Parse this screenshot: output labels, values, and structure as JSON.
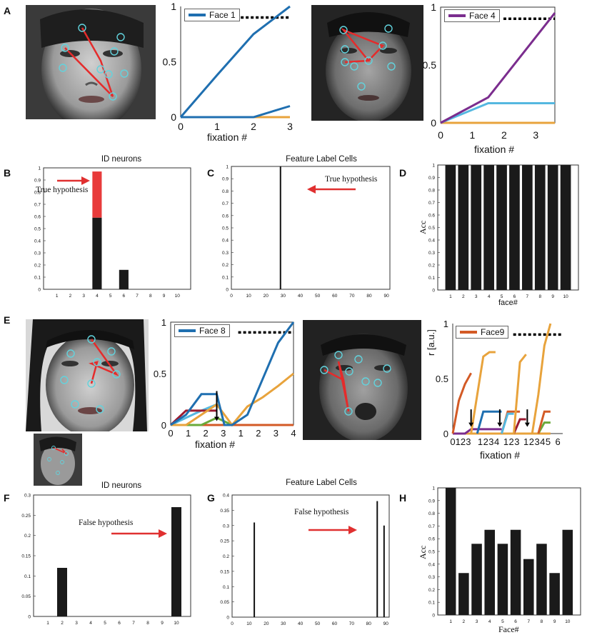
{
  "panel_labels": {
    "a": "A",
    "b": "B",
    "c": "C",
    "d": "D",
    "e": "E",
    "f": "F",
    "g": "G",
    "h": "H"
  },
  "titles": {
    "b": "ID neurons",
    "c": "Feature Label Cells",
    "f": "ID neurons",
    "g": "Feature Label Cells"
  },
  "annotations": {
    "b": "True hypothesis",
    "c": "True hypothesis",
    "f": "False hypothesis",
    "g": "False hypothesis"
  },
  "colors": {
    "blue": "#1f6fb0",
    "orange": "#e8a33c",
    "purple": "#7b2d8e",
    "cyan": "#55b8e0",
    "red": "#e03030",
    "green": "#6aaa3a",
    "darkred": "#9b1b30",
    "orangered": "#d35a25",
    "dashed": "#000000",
    "bar": "#1a1a1a",
    "barred": "#e83b3b",
    "circle": "#62d3dd"
  },
  "chart_data": [
    {
      "id": "a1",
      "type": "line",
      "legend": "Face 1",
      "xlabel": "fixation #",
      "ylabel": "",
      "xlim": [
        0,
        3
      ],
      "ylim": [
        0,
        1
      ],
      "xticks": [
        "0",
        "1",
        "2",
        "3"
      ],
      "yticks": [
        "0",
        "0.5",
        "1"
      ],
      "threshold": 0.9,
      "series": [
        {
          "name": "Face 1",
          "color": "#1f6fb0",
          "x": [
            0,
            1,
            2,
            3
          ],
          "y": [
            0,
            0.38,
            0.75,
            1.0
          ]
        },
        {
          "name": "other",
          "color": "#1f6fb0",
          "x": [
            0,
            2,
            3
          ],
          "y": [
            0,
            0,
            0.1
          ]
        },
        {
          "name": "other2",
          "color": "#e8a33c",
          "x": [
            0,
            3
          ],
          "y": [
            0,
            0
          ]
        }
      ]
    },
    {
      "id": "a2",
      "type": "line",
      "legend": "Face 4",
      "xlabel": "fixation #",
      "ylabel": "",
      "xlim": [
        0,
        3.6
      ],
      "ylim": [
        0,
        1
      ],
      "xticks": [
        "0",
        "1",
        "2",
        "3"
      ],
      "yticks": [
        "0",
        "0.5",
        "1"
      ],
      "threshold": 0.9,
      "series": [
        {
          "name": "Face 4",
          "color": "#7b2d8e",
          "x": [
            0,
            1.5,
            3.6
          ],
          "y": [
            0,
            0.22,
            0.95
          ]
        },
        {
          "name": "other",
          "color": "#55b8e0",
          "x": [
            0,
            1.5,
            3.6
          ],
          "y": [
            0,
            0.17,
            0.17
          ]
        },
        {
          "name": "other2",
          "color": "#e8a33c",
          "x": [
            0,
            3.6
          ],
          "y": [
            0,
            0
          ]
        }
      ]
    },
    {
      "id": "b",
      "type": "bar",
      "title": "ID neurons",
      "categories": [
        "1",
        "2",
        "3",
        "4",
        "5",
        "6",
        "7",
        "8",
        "9",
        "10"
      ],
      "xlim": [
        0,
        11
      ],
      "ylim": [
        0,
        1
      ],
      "yticks": [
        "0",
        "0.1",
        "0.2",
        "0.3",
        "0.4",
        "0.5",
        "0.6",
        "0.7",
        "0.8",
        "0.9",
        "1"
      ],
      "series": [
        {
          "name": "base",
          "color": "#1a1a1a",
          "values": [
            0,
            0,
            0,
            0.59,
            0,
            0.16,
            0,
            0,
            0,
            0
          ]
        },
        {
          "name": "added",
          "color": "#e83b3b",
          "values": [
            0,
            0,
            0,
            0.38,
            0,
            0,
            0,
            0,
            0,
            0
          ]
        }
      ]
    },
    {
      "id": "c",
      "type": "bar",
      "title": "Feature Label Cells",
      "xticks": [
        "0",
        "10",
        "20",
        "30",
        "40",
        "50",
        "60",
        "70",
        "80",
        "90"
      ],
      "xlim": [
        0,
        92
      ],
      "ylim": [
        0,
        1
      ],
      "yticks": [
        "0",
        "0.1",
        "0.2",
        "0.3",
        "0.4",
        "0.5",
        "0.6",
        "0.7",
        "0.8",
        "0.9",
        "1"
      ],
      "spikes": [
        {
          "x": 28.5,
          "y": 1.0
        }
      ]
    },
    {
      "id": "d",
      "type": "bar",
      "ylabel": "Acc",
      "xlabel": "face#",
      "categories": [
        "1",
        "2",
        "3",
        "4",
        "5",
        "6",
        "7",
        "8",
        "9",
        "10"
      ],
      "xlim": [
        0,
        11
      ],
      "ylim": [
        0,
        1
      ],
      "yticks": [
        "0",
        "0.1",
        "0.2",
        "0.3",
        "0.4",
        "0.5",
        "0.6",
        "0.7",
        "0.8",
        "0.9",
        "1"
      ],
      "values": [
        1,
        1,
        1,
        1,
        1,
        1,
        1,
        1,
        1,
        1
      ]
    },
    {
      "id": "e1",
      "type": "line",
      "legend": "Face 8",
      "xlabel": "fixation #",
      "xlim": [
        0,
        8
      ],
      "ylim": [
        0,
        1
      ],
      "xticks": [
        "0",
        "1",
        "2",
        "3",
        "1",
        "2",
        "3",
        "4"
      ],
      "yticks": [
        "0",
        "0.5",
        "1"
      ],
      "threshold": 0.9,
      "series": [
        {
          "name": "Face 8",
          "color": "#1f6fb0",
          "x": [
            0,
            1,
            2,
            3,
            3.5,
            4,
            5,
            6,
            7,
            8
          ],
          "y": [
            0,
            0.1,
            0.3,
            0.3,
            0,
            0,
            0.1,
            0.45,
            0.8,
            1.0
          ]
        },
        {
          "name": "s2",
          "color": "#e8a33c",
          "x": [
            0,
            1,
            2,
            3,
            4,
            5,
            6,
            7,
            8
          ],
          "y": [
            0,
            0,
            0.1,
            0.2,
            0,
            0.18,
            0.27,
            0.38,
            0.5
          ]
        },
        {
          "name": "s3",
          "color": "#9b1b30",
          "x": [
            0,
            1,
            2,
            3
          ],
          "y": [
            0,
            0.14,
            0.14,
            0.14
          ]
        },
        {
          "name": "s4",
          "color": "#55b8e0",
          "x": [
            0,
            1,
            2,
            3
          ],
          "y": [
            0,
            0.07,
            0.14,
            0.2
          ]
        },
        {
          "name": "s5",
          "color": "#6aaa3a",
          "x": [
            0,
            2,
            3,
            4
          ],
          "y": [
            0,
            0,
            0.07,
            0
          ]
        },
        {
          "name": "s6",
          "color": "#d35a25",
          "x": [
            0,
            8
          ],
          "y": [
            0,
            0
          ]
        }
      ],
      "markers": [
        {
          "x": 3,
          "y0": 0.33,
          "y1": 0.08
        }
      ]
    },
    {
      "id": "e2",
      "type": "line",
      "legend": "Face9",
      "xlabel": "fixation #",
      "ylabel": "r [a.u.]",
      "xlim": [
        0,
        18
      ],
      "ylim": [
        0,
        1
      ],
      "xticks": [
        "0",
        "1",
        "2",
        "3",
        "1",
        "2",
        "3",
        "4",
        "1",
        "2",
        "3",
        "1",
        "2",
        "3",
        "4",
        "5",
        "6"
      ],
      "yticks": [
        "0",
        "0.5",
        "1"
      ],
      "threshold": 0.9,
      "series": [
        {
          "name": "Face9",
          "color": "#d35a25",
          "x": [
            0,
            1,
            2,
            3
          ],
          "y": [
            0,
            0.3,
            0.45,
            0.55
          ]
        },
        {
          "name": "s2",
          "color": "#e8a33c",
          "x": [
            3,
            4,
            5,
            6,
            7
          ],
          "y": [
            0,
            0.35,
            0.7,
            0.74,
            0.74
          ]
        },
        {
          "name": "s3",
          "color": "#e8a33c",
          "x": [
            10,
            11,
            12
          ],
          "y": [
            0,
            0.65,
            0.72
          ]
        },
        {
          "name": "s4",
          "color": "#e8a33c",
          "x": [
            13,
            14,
            15,
            16
          ],
          "y": [
            0,
            0.35,
            0.8,
            1.0
          ]
        },
        {
          "name": "s5",
          "color": "#1f6fb0",
          "x": [
            4,
            5,
            6,
            8
          ],
          "y": [
            0,
            0.2,
            0.2,
            0.2
          ]
        },
        {
          "name": "s6",
          "color": "#55b8e0",
          "x": [
            8,
            9,
            10
          ],
          "y": [
            0,
            0.18,
            0.18
          ]
        },
        {
          "name": "s7",
          "color": "#d35a25",
          "x": [
            8,
            9,
            10,
            11
          ],
          "y": [
            0,
            0.2,
            0.2,
            0.2
          ]
        },
        {
          "name": "s8",
          "color": "#d35a25",
          "x": [
            14,
            15,
            16
          ],
          "y": [
            0,
            0.2,
            0.2
          ]
        },
        {
          "name": "s9",
          "color": "#7b2d8e",
          "x": [
            0,
            2,
            3,
            8
          ],
          "y": [
            0,
            0,
            0.04,
            0.04
          ]
        },
        {
          "name": "s10",
          "color": "#9b1b30",
          "x": [
            10,
            11,
            12
          ],
          "y": [
            0,
            0.13,
            0.13
          ]
        },
        {
          "name": "s11",
          "color": "#6aaa3a",
          "x": [
            14,
            15,
            16
          ],
          "y": [
            0,
            0.1,
            0.1
          ]
        },
        {
          "name": "s12",
          "color": "#e8a33c",
          "x": [
            0,
            16
          ],
          "y": [
            0,
            0
          ]
        }
      ],
      "markers": [
        {
          "x": 3,
          "y0": 0.22,
          "y1": 0.1
        },
        {
          "x": 7.7,
          "y0": 0.22,
          "y1": 0.1
        },
        {
          "x": 12.2,
          "y0": 0.22,
          "y1": 0.1
        }
      ]
    },
    {
      "id": "f",
      "type": "bar",
      "title": "ID neurons",
      "categories": [
        "1",
        "2",
        "3",
        "4",
        "5",
        "6",
        "7",
        "8",
        "9",
        "10"
      ],
      "xlim": [
        0,
        11
      ],
      "ylim": [
        0,
        0.3
      ],
      "yticks": [
        "0",
        "0.05",
        "0.1",
        "0.15",
        "0.2",
        "0.25",
        "0.3"
      ],
      "values": [
        0,
        0.12,
        0,
        0,
        0,
        0,
        0,
        0,
        0,
        0.27
      ]
    },
    {
      "id": "g",
      "type": "bar",
      "title": "Feature Label Cells",
      "xticks": [
        "0",
        "10",
        "20",
        "30",
        "40",
        "50",
        "60",
        "70",
        "80",
        "90"
      ],
      "xlim": [
        0,
        92
      ],
      "ylim": [
        0,
        0.4
      ],
      "yticks": [
        "0",
        "0.05",
        "0.1",
        "0.15",
        "0.2",
        "0.25",
        "0.3",
        "0.35",
        "0.4"
      ],
      "spikes": [
        {
          "x": 13,
          "y": 0.31
        },
        {
          "x": 85,
          "y": 0.38
        },
        {
          "x": 89,
          "y": 0.3
        }
      ]
    },
    {
      "id": "h",
      "type": "bar",
      "ylabel": "Acc",
      "xlabel": "Face#",
      "categories": [
        "1",
        "2",
        "3",
        "4",
        "5",
        "6",
        "7",
        "8",
        "9",
        "10"
      ],
      "xlim": [
        0,
        11
      ],
      "ylim": [
        0,
        1
      ],
      "yticks": [
        "0",
        "0.1",
        "0.2",
        "0.3",
        "0.4",
        "0.5",
        "0.6",
        "0.7",
        "0.8",
        "0.9",
        "1"
      ],
      "values": [
        1.0,
        0.33,
        0.56,
        0.67,
        0.56,
        0.67,
        0.44,
        0.56,
        0.33,
        0.67
      ]
    }
  ]
}
